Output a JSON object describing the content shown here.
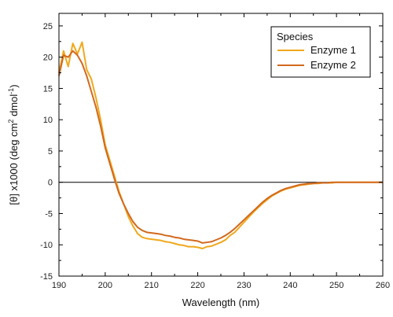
{
  "chart_data": {
    "type": "line",
    "title": "",
    "xlabel": "Wavelength (nm)",
    "ylabel_parts": [
      "[θ] x1000 (deg cm",
      "2",
      " dmol",
      "-1",
      ")"
    ],
    "xlim": [
      190,
      260
    ],
    "ylim": [
      -15,
      27
    ],
    "xticks": [
      190,
      200,
      210,
      220,
      230,
      240,
      250,
      260
    ],
    "yticks": [
      -15,
      -10,
      -5,
      0,
      5,
      10,
      15,
      20,
      25
    ],
    "grid": false,
    "zero_line": true,
    "legend": {
      "title": "Species",
      "position": "top-right"
    },
    "series": [
      {
        "name": "Enzyme 1",
        "color": "#F0A81C",
        "x": [
          190,
          191,
          192,
          193,
          194,
          195,
          196,
          197,
          198,
          199,
          200,
          201,
          202,
          203,
          204,
          205,
          206,
          207,
          208,
          209,
          210,
          211,
          212,
          213,
          214,
          215,
          216,
          217,
          218,
          219,
          220,
          221,
          222,
          223,
          224,
          225,
          226,
          227,
          228,
          229,
          230,
          231,
          232,
          233,
          234,
          235,
          236,
          237,
          238,
          239,
          240,
          241,
          242,
          243,
          244,
          245,
          246,
          247,
          248,
          249,
          250,
          251,
          252,
          253,
          254,
          255,
          256,
          257,
          258,
          259,
          260
        ],
        "y": [
          17.5,
          21.0,
          18.5,
          22.2,
          20.5,
          22.4,
          18.0,
          16.5,
          13.5,
          10.0,
          6.0,
          3.5,
          1.0,
          -1.5,
          -3.5,
          -5.5,
          -7.0,
          -8.2,
          -8.8,
          -9.0,
          -9.1,
          -9.2,
          -9.3,
          -9.5,
          -9.6,
          -9.8,
          -10.0,
          -10.1,
          -10.3,
          -10.3,
          -10.4,
          -10.6,
          -10.3,
          -10.2,
          -9.9,
          -9.6,
          -9.2,
          -8.5,
          -8.0,
          -7.2,
          -6.4,
          -5.6,
          -4.8,
          -4.1,
          -3.4,
          -2.8,
          -2.2,
          -1.8,
          -1.4,
          -1.1,
          -0.9,
          -0.7,
          -0.5,
          -0.4,
          -0.3,
          -0.2,
          -0.2,
          -0.1,
          -0.1,
          -0.1,
          0.0,
          0.0,
          0.0,
          0.0,
          0.0,
          0.0,
          0.0,
          0.0,
          0.0,
          0.0,
          0.0
        ]
      },
      {
        "name": "Enzyme 2",
        "color": "#D2691E",
        "x": [
          190,
          191,
          192,
          193,
          194,
          195,
          196,
          197,
          198,
          199,
          200,
          201,
          202,
          203,
          204,
          205,
          206,
          207,
          208,
          209,
          210,
          211,
          212,
          213,
          214,
          215,
          216,
          217,
          218,
          219,
          220,
          221,
          222,
          223,
          224,
          225,
          226,
          227,
          228,
          229,
          230,
          231,
          232,
          233,
          234,
          235,
          236,
          237,
          238,
          239,
          240,
          241,
          242,
          243,
          244,
          245,
          246,
          247,
          248,
          249,
          250,
          251,
          252,
          253,
          254,
          255,
          256,
          257,
          258,
          259,
          260
        ],
        "y": [
          17.0,
          20.3,
          20.0,
          21.0,
          20.3,
          19.0,
          17.0,
          14.5,
          12.0,
          9.0,
          5.5,
          3.0,
          0.5,
          -1.8,
          -3.5,
          -5.0,
          -6.3,
          -7.2,
          -7.7,
          -8.0,
          -8.1,
          -8.2,
          -8.3,
          -8.5,
          -8.6,
          -8.8,
          -8.9,
          -9.1,
          -9.2,
          -9.3,
          -9.4,
          -9.7,
          -9.6,
          -9.5,
          -9.2,
          -8.9,
          -8.5,
          -8.0,
          -7.4,
          -6.7,
          -6.0,
          -5.3,
          -4.6,
          -3.9,
          -3.2,
          -2.6,
          -2.1,
          -1.7,
          -1.3,
          -1.0,
          -0.8,
          -0.6,
          -0.4,
          -0.3,
          -0.2,
          -0.2,
          -0.1,
          -0.1,
          -0.1,
          0.0,
          0.0,
          0.0,
          0.0,
          0.0,
          0.0,
          0.0,
          0.0,
          0.0,
          0.0,
          0.0,
          0.0
        ]
      }
    ]
  }
}
